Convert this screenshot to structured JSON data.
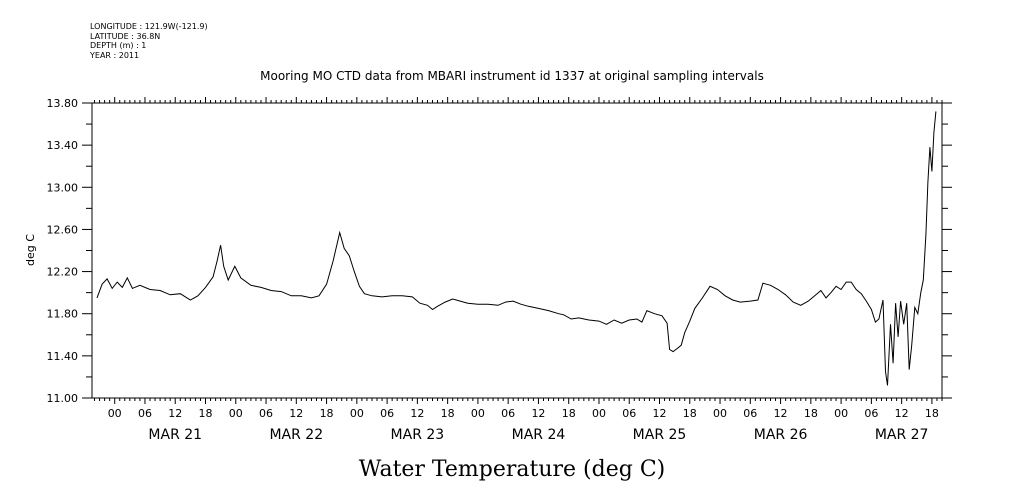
{
  "meta": {
    "longitude": "LONGITUDE : 121.9W(-121.9)",
    "latitude": "LATITUDE : 36.8N",
    "depth": "DEPTH (m) : 1",
    "year": "YEAR : 2011"
  },
  "chart_data": {
    "type": "line",
    "title": "Mooring MO CTD data from MBARI instrument id 1337 at original sampling intervals",
    "xlabel": "Water Temperature (deg C)",
    "ylabel": "deg C",
    "ylim": [
      11.0,
      13.8
    ],
    "yticks": [
      "11.00",
      "11.40",
      "11.80",
      "12.20",
      "12.60",
      "13.00",
      "13.40",
      "13.80"
    ],
    "xlim_hours": [
      -4.5,
      164
    ],
    "x_hour_ticks": [
      "00",
      "06",
      "12",
      "18",
      "00",
      "06",
      "12",
      "18",
      "00",
      "06",
      "12",
      "18",
      "00",
      "06",
      "12",
      "18",
      "00",
      "06",
      "12",
      "18",
      "00",
      "06",
      "12",
      "18",
      "00",
      "06",
      "12",
      "18"
    ],
    "x_day_labels": [
      "MAR 21",
      "MAR 22",
      "MAR 23",
      "MAR 24",
      "MAR 25",
      "MAR 26",
      "MAR 27"
    ],
    "x_unit": "hours since 00 MAR 21 2011",
    "grid": false,
    "series": [
      {
        "values": [
          [
            -3.5,
            11.95
          ],
          [
            -2.5,
            12.08
          ],
          [
            -1.5,
            12.13
          ],
          [
            -0.5,
            12.04
          ],
          [
            0.5,
            12.1
          ],
          [
            1.5,
            12.05
          ],
          [
            2.5,
            12.14
          ],
          [
            3.5,
            12.04
          ],
          [
            5,
            12.07
          ],
          [
            7,
            12.03
          ],
          [
            9,
            12.02
          ],
          [
            11,
            11.98
          ],
          [
            13,
            11.99
          ],
          [
            15,
            11.93
          ],
          [
            16.5,
            11.97
          ],
          [
            18,
            12.05
          ],
          [
            19.5,
            12.15
          ],
          [
            20.3,
            12.3
          ],
          [
            21,
            12.45
          ],
          [
            21.6,
            12.25
          ],
          [
            22.5,
            12.12
          ],
          [
            23.8,
            12.25
          ],
          [
            25,
            12.14
          ],
          [
            27,
            12.07
          ],
          [
            29,
            12.05
          ],
          [
            31,
            12.02
          ],
          [
            33,
            12.01
          ],
          [
            35,
            11.97
          ],
          [
            37,
            11.97
          ],
          [
            39,
            11.95
          ],
          [
            40.5,
            11.97
          ],
          [
            42,
            12.08
          ],
          [
            43.3,
            12.3
          ],
          [
            44.6,
            12.57
          ],
          [
            45.5,
            12.42
          ],
          [
            46.5,
            12.35
          ],
          [
            47.5,
            12.2
          ],
          [
            48.5,
            12.06
          ],
          [
            49.5,
            11.99
          ],
          [
            51,
            11.97
          ],
          [
            53,
            11.96
          ],
          [
            55,
            11.97
          ],
          [
            57,
            11.97
          ],
          [
            59,
            11.96
          ],
          [
            60.5,
            11.9
          ],
          [
            62,
            11.88
          ],
          [
            63,
            11.84
          ],
          [
            64,
            11.87
          ],
          [
            65.5,
            11.91
          ],
          [
            67,
            11.94
          ],
          [
            68.5,
            11.92
          ],
          [
            70,
            11.9
          ],
          [
            72,
            11.89
          ],
          [
            74,
            11.89
          ],
          [
            76,
            11.88
          ],
          [
            77.5,
            11.91
          ],
          [
            79,
            11.92
          ],
          [
            80.5,
            11.89
          ],
          [
            82,
            11.87
          ],
          [
            84,
            11.85
          ],
          [
            86,
            11.83
          ],
          [
            88,
            11.8
          ],
          [
            89,
            11.79
          ],
          [
            90.5,
            11.75
          ],
          [
            92,
            11.76
          ],
          [
            94,
            11.74
          ],
          [
            96,
            11.73
          ],
          [
            97.5,
            11.7
          ],
          [
            99,
            11.74
          ],
          [
            100.5,
            11.71
          ],
          [
            102,
            11.74
          ],
          [
            103.5,
            11.75
          ],
          [
            104.5,
            11.72
          ],
          [
            105.5,
            11.83
          ],
          [
            107,
            11.8
          ],
          [
            108.5,
            11.78
          ],
          [
            109.5,
            11.71
          ],
          [
            110,
            11.46
          ],
          [
            110.7,
            11.44
          ],
          [
            111.5,
            11.47
          ],
          [
            112.3,
            11.5
          ],
          [
            113,
            11.62
          ],
          [
            114,
            11.73
          ],
          [
            115,
            11.85
          ],
          [
            116.5,
            11.95
          ],
          [
            118,
            12.06
          ],
          [
            119.5,
            12.03
          ],
          [
            121,
            11.97
          ],
          [
            122.5,
            11.93
          ],
          [
            124,
            11.91
          ],
          [
            126,
            11.92
          ],
          [
            127.5,
            11.93
          ],
          [
            128.5,
            12.09
          ],
          [
            130,
            12.07
          ],
          [
            131.5,
            12.03
          ],
          [
            133,
            11.98
          ],
          [
            134.5,
            11.91
          ],
          [
            136,
            11.88
          ],
          [
            137.5,
            11.92
          ],
          [
            139,
            11.98
          ],
          [
            140,
            12.02
          ],
          [
            141,
            11.95
          ],
          [
            142,
            12.0
          ],
          [
            143,
            12.06
          ],
          [
            144,
            12.03
          ],
          [
            145,
            12.1
          ],
          [
            146,
            12.1
          ],
          [
            147,
            12.03
          ],
          [
            148,
            11.99
          ],
          [
            149,
            11.92
          ],
          [
            150,
            11.84
          ],
          [
            150.8,
            11.72
          ],
          [
            151.5,
            11.75
          ],
          [
            152.3,
            11.93
          ],
          [
            152.8,
            11.25
          ],
          [
            153.2,
            11.12
          ],
          [
            153.8,
            11.7
          ],
          [
            154.3,
            11.33
          ],
          [
            154.8,
            11.9
          ],
          [
            155.3,
            11.58
          ],
          [
            155.8,
            11.92
          ],
          [
            156.4,
            11.7
          ],
          [
            157,
            11.9
          ],
          [
            157.5,
            11.27
          ],
          [
            158,
            11.5
          ],
          [
            158.6,
            11.86
          ],
          [
            159.2,
            11.8
          ],
          [
            159.8,
            12.0
          ],
          [
            160.3,
            12.12
          ],
          [
            160.8,
            12.55
          ],
          [
            161.2,
            13.05
          ],
          [
            161.6,
            13.38
          ],
          [
            162,
            13.15
          ],
          [
            162.4,
            13.52
          ],
          [
            162.8,
            13.72
          ]
        ]
      }
    ]
  }
}
